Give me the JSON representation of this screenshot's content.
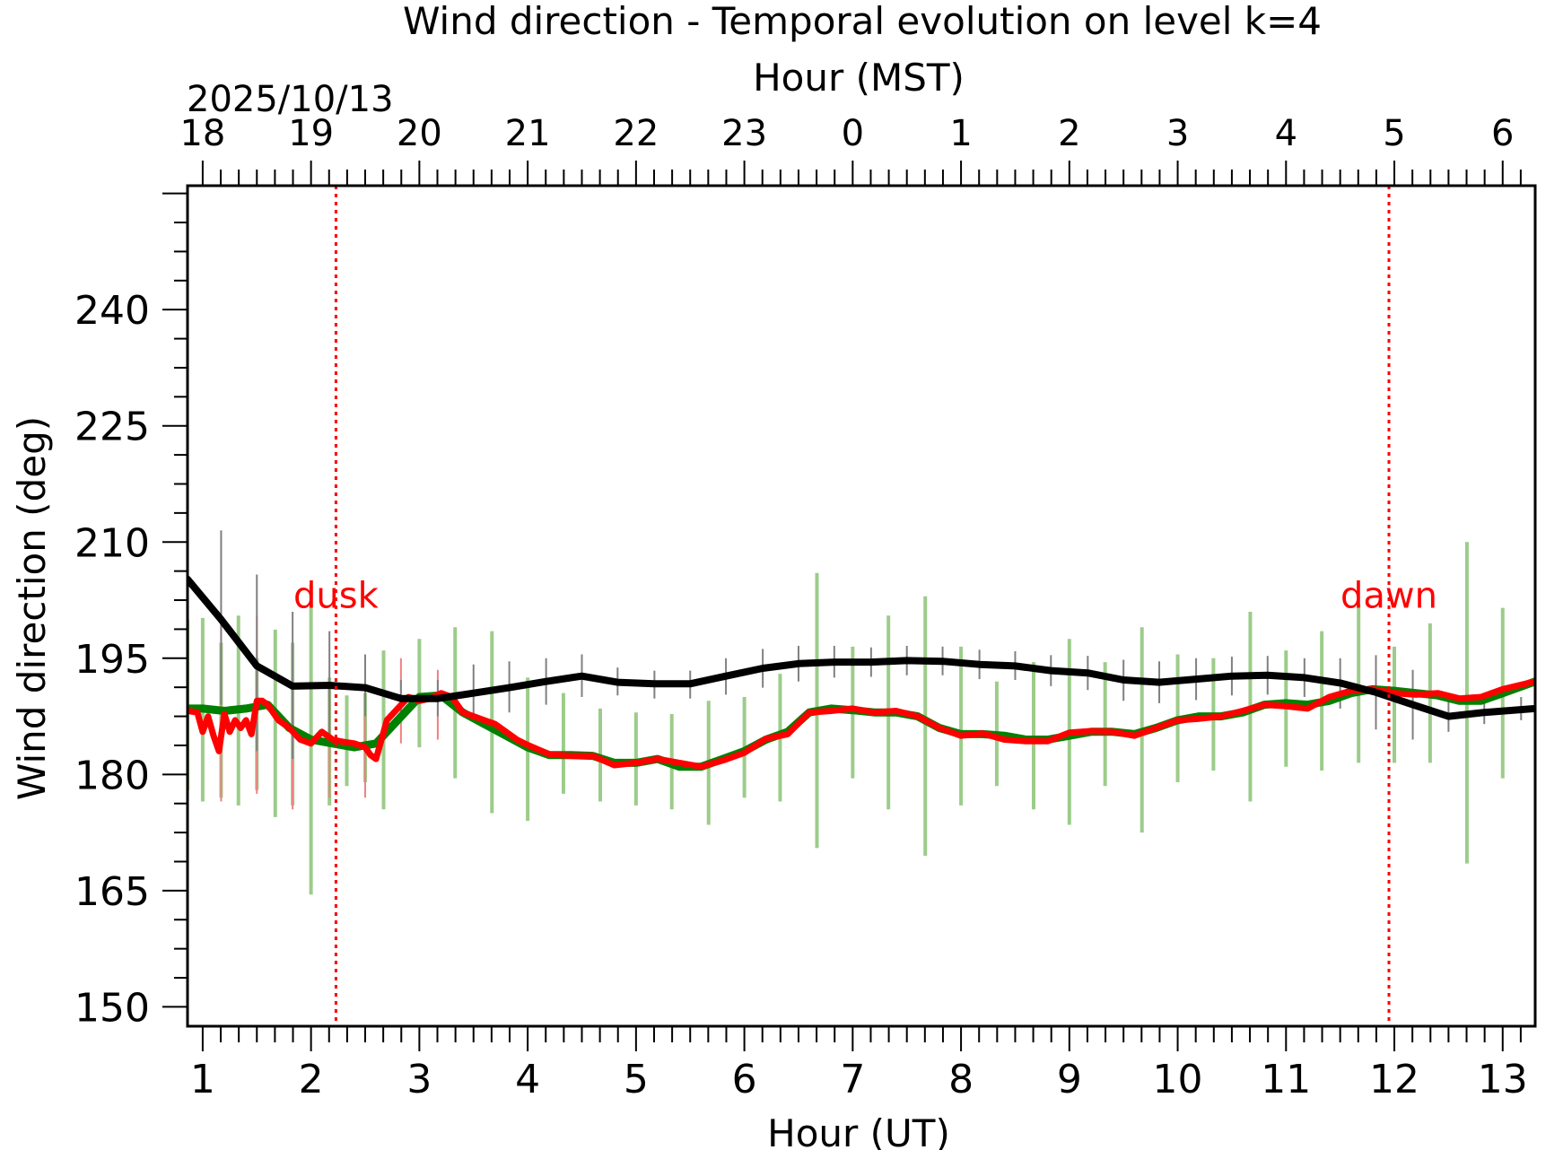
{
  "chart_data": {
    "type": "line",
    "title": "Wind direction - Temporal evolution on level k=4",
    "xlabel": "Hour (UT)",
    "ylabel": "Wind direction (deg)",
    "top_xlabel": "Hour (MST)",
    "date_label": "2025/10/13",
    "xlim": [
      0.86,
      13.3
    ],
    "ylim": [
      147.5,
      256
    ],
    "x_ticks": [
      1,
      2,
      3,
      4,
      5,
      6,
      7,
      8,
      9,
      10,
      11,
      12,
      13
    ],
    "y_ticks": [
      150,
      165,
      180,
      195,
      210,
      225,
      240
    ],
    "top_x_ticks": [
      {
        "x": 1,
        "label": "18"
      },
      {
        "x": 2,
        "label": "19"
      },
      {
        "x": 3,
        "label": "20"
      },
      {
        "x": 4,
        "label": "21"
      },
      {
        "x": 5,
        "label": "22"
      },
      {
        "x": 6,
        "label": "23"
      },
      {
        "x": 7,
        "label": "0"
      },
      {
        "x": 8,
        "label": "1"
      },
      {
        "x": 9,
        "label": "2"
      },
      {
        "x": 10,
        "label": "3"
      },
      {
        "x": 11,
        "label": "4"
      },
      {
        "x": 12,
        "label": "5"
      },
      {
        "x": 13,
        "label": "6"
      }
    ],
    "annotations": [
      {
        "label": "dusk",
        "x": 2.23,
        "color": "#ff0000"
      },
      {
        "label": "dawn",
        "x": 11.95,
        "color": "#ff0000"
      }
    ],
    "series": [
      {
        "color": "#000000",
        "x": [
          0.86,
          1.17,
          1.5,
          1.83,
          2.17,
          2.5,
          2.83,
          3.17,
          3.5,
          3.83,
          4.17,
          4.5,
          4.83,
          5.17,
          5.5,
          5.83,
          6.17,
          6.5,
          6.83,
          7.17,
          7.5,
          7.83,
          8.17,
          8.5,
          8.83,
          9.17,
          9.5,
          9.83,
          10.17,
          10.5,
          10.83,
          11.17,
          11.5,
          11.83,
          12.17,
          12.5,
          12.83,
          13.3
        ],
        "y": [
          205.2,
          200,
          194,
          191.4,
          191.5,
          191.2,
          189.8,
          189.8,
          190.5,
          191.2,
          192,
          192.7,
          191.9,
          191.7,
          191.7,
          192.7,
          193.7,
          194.3,
          194.5,
          194.5,
          194.7,
          194.6,
          194.2,
          194,
          193.4,
          193.1,
          192.2,
          191.9,
          192.3,
          192.7,
          192.8,
          192.5,
          191.8,
          190.6,
          189,
          187.5,
          188,
          188.5
        ],
        "errors": [
          [
            0.86,
            198.5,
            205.5
          ],
          [
            1.17,
            189,
            211.5
          ],
          [
            1.5,
            183,
            205.8
          ],
          [
            1.83,
            182,
            201
          ],
          [
            2.17,
            184.5,
            198.5
          ],
          [
            2.5,
            187.5,
            195.5
          ],
          [
            2.83,
            187.5,
            192.2
          ],
          [
            3.17,
            187.5,
            192.2
          ],
          [
            3.5,
            187,
            194.2
          ],
          [
            3.83,
            188,
            194.6
          ],
          [
            4.17,
            189,
            195
          ],
          [
            4.5,
            190,
            195.5
          ],
          [
            4.83,
            190.2,
            193.8
          ],
          [
            5.17,
            189.8,
            193.4
          ],
          [
            5.5,
            189.8,
            193.4
          ],
          [
            5.83,
            190.3,
            195
          ],
          [
            6.17,
            191.2,
            196.2
          ],
          [
            6.5,
            192,
            196.6
          ],
          [
            6.83,
            192.5,
            196.6
          ],
          [
            7.17,
            192.6,
            196.4
          ],
          [
            7.5,
            192.8,
            196.6
          ],
          [
            7.83,
            192.8,
            196.5
          ],
          [
            8.17,
            192.3,
            196.1
          ],
          [
            8.5,
            192.2,
            195.9
          ],
          [
            8.83,
            191.4,
            195.4
          ],
          [
            9.17,
            190.9,
            195.3
          ],
          [
            9.5,
            189.5,
            194.8
          ],
          [
            9.83,
            189.2,
            194.6
          ],
          [
            10.17,
            189.6,
            195
          ],
          [
            10.5,
            190.2,
            195.2
          ],
          [
            10.83,
            190.3,
            195.3
          ],
          [
            11.17,
            190,
            195
          ],
          [
            11.5,
            188.5,
            195
          ],
          [
            11.83,
            185.8,
            195.4
          ],
          [
            12.17,
            184.5,
            193.5
          ],
          [
            12.5,
            185.5,
            189.8
          ],
          [
            12.83,
            186.5,
            189.8
          ],
          [
            13.17,
            187,
            190
          ]
        ],
        "error_color": "#808080"
      },
      {
        "color": "#008000",
        "x": [
          0.86,
          1.0,
          1.2,
          1.4,
          1.6,
          1.8,
          2.0,
          2.2,
          2.4,
          2.6,
          2.8,
          3.0,
          3.2,
          3.4,
          3.6,
          3.8,
          4.0,
          4.2,
          4.4,
          4.6,
          4.8,
          5.0,
          5.2,
          5.4,
          5.6,
          5.8,
          6.0,
          6.2,
          6.4,
          6.6,
          6.8,
          7.0,
          7.2,
          7.4,
          7.6,
          7.8,
          8.0,
          8.2,
          8.4,
          8.6,
          8.8,
          9.0,
          9.2,
          9.4,
          9.6,
          9.8,
          10.0,
          10.2,
          10.4,
          10.6,
          10.8,
          11.0,
          11.2,
          11.4,
          11.6,
          11.8,
          12.0,
          12.2,
          12.4,
          12.6,
          12.8,
          13.0,
          13.3
        ],
        "y": [
          188.5,
          188.5,
          188.2,
          188.5,
          189,
          186,
          184.5,
          184,
          183.5,
          184,
          187,
          190,
          190.2,
          188,
          186.5,
          185,
          183.5,
          182.5,
          182.5,
          182.4,
          181.5,
          181.5,
          182,
          181,
          181,
          182,
          183,
          184.5,
          185.5,
          188,
          188.5,
          188.3,
          188,
          188,
          187.5,
          186,
          185.2,
          185.2,
          185,
          184.5,
          184.5,
          185,
          185.5,
          185.5,
          185.2,
          186,
          187,
          187.5,
          187.5,
          188,
          189,
          189.2,
          189,
          189.5,
          190.5,
          191,
          190.8,
          190.5,
          190.2,
          189.5,
          189.5,
          190.5,
          192
        ]
      },
      {
        "color": "#ff0000",
        "x": [
          0.86,
          0.95,
          1.0,
          1.05,
          1.1,
          1.15,
          1.2,
          1.25,
          1.3,
          1.35,
          1.4,
          1.45,
          1.5,
          1.55,
          1.6,
          1.7,
          1.8,
          1.9,
          2.0,
          2.1,
          2.2,
          2.3,
          2.4,
          2.5,
          2.55,
          2.6,
          2.7,
          2.8,
          2.9,
          3.0,
          3.1,
          3.2,
          3.3,
          3.4,
          3.5,
          3.6,
          3.7,
          3.8,
          3.9,
          4.0,
          4.1,
          4.2,
          4.4,
          4.6,
          4.8,
          5.0,
          5.2,
          5.4,
          5.6,
          5.8,
          6.0,
          6.2,
          6.4,
          6.6,
          6.8,
          7.0,
          7.2,
          7.4,
          7.6,
          7.8,
          8.0,
          8.2,
          8.4,
          8.6,
          8.8,
          9.0,
          9.2,
          9.4,
          9.6,
          9.8,
          10.0,
          10.2,
          10.4,
          10.6,
          10.8,
          11.0,
          11.2,
          11.4,
          11.6,
          11.8,
          12.0,
          12.2,
          12.4,
          12.6,
          12.8,
          13.0,
          13.3
        ],
        "y": [
          188.2,
          188,
          185.5,
          187.5,
          185,
          183,
          187.8,
          185.5,
          187,
          186,
          187,
          185.2,
          189.5,
          189.5,
          189,
          187,
          186,
          184.5,
          184,
          185.5,
          184.5,
          184.2,
          184,
          183.5,
          182.5,
          182,
          187,
          188.5,
          190,
          189.5,
          189.8,
          190.5,
          190,
          188,
          187.5,
          187,
          186.5,
          185.5,
          184.5,
          183.8,
          183.2,
          182.6,
          182.4,
          182.4,
          181.2,
          181.5,
          182,
          181.5,
          181,
          181.8,
          182.8,
          184.6,
          185.2,
          188,
          188.2,
          188.5,
          188,
          188.2,
          187.5,
          186,
          185,
          185.3,
          184.5,
          184.3,
          184.3,
          185.4,
          185.6,
          185.5,
          185,
          186,
          187,
          187.2,
          187.5,
          188.2,
          189,
          188.8,
          188.5,
          190,
          190.8,
          191,
          190.5,
          190.3,
          190.5,
          189.8,
          190,
          191,
          192
        ]
      }
    ],
    "green_errors": [
      [
        0.86,
        178,
        200
      ],
      [
        1.0,
        176.5,
        200.2
      ],
      [
        1.17,
        177,
        197
      ],
      [
        1.33,
        176,
        200.5
      ],
      [
        1.5,
        178,
        195
      ],
      [
        1.67,
        174.5,
        198.7
      ],
      [
        1.83,
        176,
        197
      ],
      [
        2.0,
        164.5,
        204.5
      ],
      [
        2.17,
        176,
        192.5
      ],
      [
        2.33,
        178.5,
        190.2
      ],
      [
        2.5,
        179,
        190.5
      ],
      [
        2.67,
        175.5,
        196
      ],
      [
        3.0,
        183.5,
        197.5
      ],
      [
        3.33,
        179.5,
        199
      ],
      [
        3.67,
        175,
        198.5
      ],
      [
        4.0,
        174,
        192.5
      ],
      [
        4.33,
        177.5,
        190.5
      ],
      [
        4.67,
        176.5,
        188.5
      ],
      [
        5.0,
        176,
        188
      ],
      [
        5.33,
        175.5,
        187.8
      ],
      [
        5.67,
        173.5,
        189.5
      ],
      [
        6.0,
        177,
        190
      ],
      [
        6.33,
        176.5,
        193
      ],
      [
        6.67,
        170.5,
        206
      ],
      [
        7.0,
        179.5,
        196.5
      ],
      [
        7.33,
        175.5,
        200.5
      ],
      [
        7.67,
        169.5,
        203
      ],
      [
        8.0,
        176,
        196.5
      ],
      [
        8.33,
        178.5,
        192
      ],
      [
        8.67,
        175.5,
        194.5
      ],
      [
        9.0,
        173.5,
        197.5
      ],
      [
        9.33,
        178.5,
        194.5
      ],
      [
        9.67,
        172.5,
        199
      ],
      [
        10.0,
        179,
        195.5
      ],
      [
        10.33,
        180.5,
        195
      ],
      [
        10.67,
        176.5,
        201
      ],
      [
        11.0,
        181,
        196
      ],
      [
        11.33,
        180.5,
        198.5
      ],
      [
        11.67,
        181.5,
        202
      ],
      [
        12.0,
        181.5,
        196.5
      ],
      [
        12.33,
        181.5,
        199.5
      ],
      [
        12.67,
        168.5,
        210
      ],
      [
        13.0,
        179.5,
        201.5
      ]
    ],
    "red_errors": [
      [
        1.17,
        176.5,
        200
      ],
      [
        1.5,
        177.5,
        200.5
      ],
      [
        1.83,
        175.5,
        191
      ],
      [
        2.17,
        177,
        192
      ],
      [
        2.5,
        177,
        193
      ],
      [
        2.83,
        184,
        195
      ],
      [
        3.17,
        184.5,
        193.5
      ]
    ],
    "green_error_color": "#9ccc8a",
    "red_error_color": "#f08080"
  }
}
